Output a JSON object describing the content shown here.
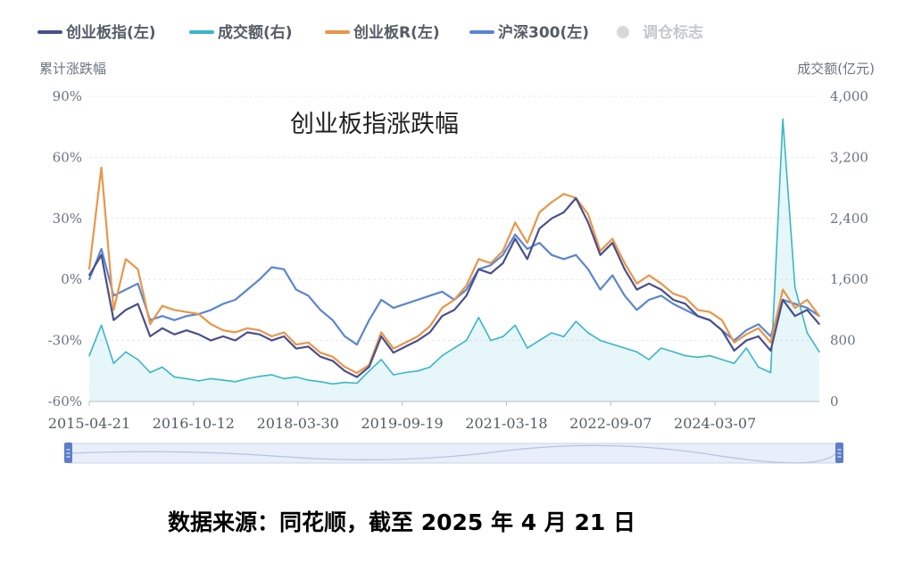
{
  "chart_data": {
    "type": "line",
    "title": "创业板指涨跌幅",
    "legend": {
      "placement": "top-left",
      "items": [
        {
          "label": "创业板指(左)",
          "color": "#4a4f8c",
          "active": true
        },
        {
          "label": "成交额(右)",
          "color": "#39b6c8",
          "active": true
        },
        {
          "label": "创业板R(左)",
          "color": "#e8964a",
          "active": true
        },
        {
          "label": "沪深300(左)",
          "color": "#5b85cf",
          "active": true
        },
        {
          "label": "调仓标志",
          "color": "#d6d8dc",
          "active": false
        }
      ]
    },
    "y_left_title": "累计涨跌幅",
    "y_right_title": "成交额(亿元)",
    "y_left_ticks": [
      "90%",
      "60%",
      "30%",
      "0%",
      "-30%",
      "-60%"
    ],
    "y_right_ticks": [
      "4,000",
      "3,200",
      "2,400",
      "1,600",
      "800",
      "0"
    ],
    "x_ticks": [
      "2015-04-21",
      "2016-10-12",
      "2018-03-30",
      "2019-09-19",
      "2021-03-18",
      "2022-09-07",
      "2024-03-07"
    ],
    "ylim_left": [
      -60,
      90
    ],
    "ylim_right": [
      0,
      4000
    ],
    "grid": true,
    "x": [
      "2015-04",
      "2015-06",
      "2015-08",
      "2015-10",
      "2015-12",
      "2016-02",
      "2016-04",
      "2016-06",
      "2016-08",
      "2016-10",
      "2016-12",
      "2017-02",
      "2017-04",
      "2017-06",
      "2017-08",
      "2017-10",
      "2017-12",
      "2018-02",
      "2018-04",
      "2018-06",
      "2018-08",
      "2018-10",
      "2018-12",
      "2019-02",
      "2019-04",
      "2019-06",
      "2019-08",
      "2019-10",
      "2019-12",
      "2020-02",
      "2020-04",
      "2020-06",
      "2020-08",
      "2020-10",
      "2020-12",
      "2021-02",
      "2021-04",
      "2021-06",
      "2021-08",
      "2021-10",
      "2021-12",
      "2022-02",
      "2022-04",
      "2022-06",
      "2022-08",
      "2022-10",
      "2022-12",
      "2023-02",
      "2023-04",
      "2023-06",
      "2023-08",
      "2023-10",
      "2023-12",
      "2024-02",
      "2024-04",
      "2024-06",
      "2024-08",
      "2024-10",
      "2024-12",
      "2025-02",
      "2025-04"
    ],
    "series": [
      {
        "name": "创业板指(左)",
        "axis": "left",
        "values": [
          2,
          12,
          -20,
          -15,
          -12,
          -28,
          -24,
          -27,
          -25,
          -27,
          -30,
          -28,
          -30,
          -26,
          -27,
          -30,
          -28,
          -34,
          -33,
          -38,
          -40,
          -45,
          -48,
          -43,
          -28,
          -36,
          -33,
          -30,
          -26,
          -18,
          -15,
          -8,
          5,
          3,
          8,
          20,
          10,
          25,
          30,
          33,
          40,
          28,
          12,
          18,
          5,
          -5,
          -2,
          -5,
          -10,
          -12,
          -18,
          -20,
          -25,
          -35,
          -30,
          -28,
          -35,
          -10,
          -18,
          -15,
          -22
        ]
      },
      {
        "name": "创业板R(左)",
        "axis": "left",
        "values": [
          5,
          55,
          -15,
          10,
          5,
          -22,
          -13,
          -15,
          -16,
          -17,
          -22,
          -25,
          -26,
          -24,
          -25,
          -28,
          -26,
          -32,
          -31,
          -36,
          -38,
          -43,
          -46,
          -42,
          -26,
          -34,
          -31,
          -28,
          -23,
          -14,
          -10,
          -3,
          10,
          8,
          14,
          28,
          18,
          33,
          38,
          42,
          40,
          32,
          14,
          20,
          8,
          -2,
          2,
          -2,
          -7,
          -9,
          -15,
          -16,
          -20,
          -31,
          -27,
          -24,
          -31,
          -5,
          -14,
          -10,
          -18
        ]
      },
      {
        "name": "沪深300(左)",
        "axis": "left",
        "values": [
          0,
          15,
          -8,
          -5,
          -2,
          -20,
          -18,
          -20,
          -18,
          -17,
          -15,
          -12,
          -10,
          -5,
          0,
          6,
          5,
          -5,
          -8,
          -15,
          -20,
          -28,
          -32,
          -20,
          -10,
          -14,
          -12,
          -10,
          -8,
          -6,
          -10,
          -5,
          5,
          7,
          12,
          22,
          15,
          18,
          12,
          10,
          12,
          5,
          -5,
          2,
          -8,
          -15,
          -10,
          -8,
          -12,
          -15,
          -18,
          -20,
          -25,
          -30,
          -25,
          -22,
          -28,
          -10,
          -12,
          -14,
          -18
        ]
      },
      {
        "name": "成交额(右)",
        "axis": "right",
        "values": [
          600,
          1000,
          500,
          650,
          550,
          380,
          450,
          320,
          300,
          270,
          300,
          280,
          260,
          300,
          330,
          350,
          300,
          320,
          280,
          260,
          230,
          250,
          240,
          400,
          550,
          350,
          380,
          400,
          450,
          600,
          700,
          800,
          1100,
          800,
          850,
          1000,
          700,
          800,
          900,
          850,
          1050,
          900,
          800,
          750,
          700,
          650,
          550,
          700,
          650,
          600,
          580,
          600,
          550,
          500,
          700,
          450,
          380,
          3700,
          1500,
          900,
          650
        ]
      }
    ]
  },
  "navigator": {
    "left_handle": "left-handle",
    "right_handle": "right-handle"
  },
  "footer": {
    "source": "数据来源：同花顺，截至 2025 年 4 月 21 日"
  }
}
